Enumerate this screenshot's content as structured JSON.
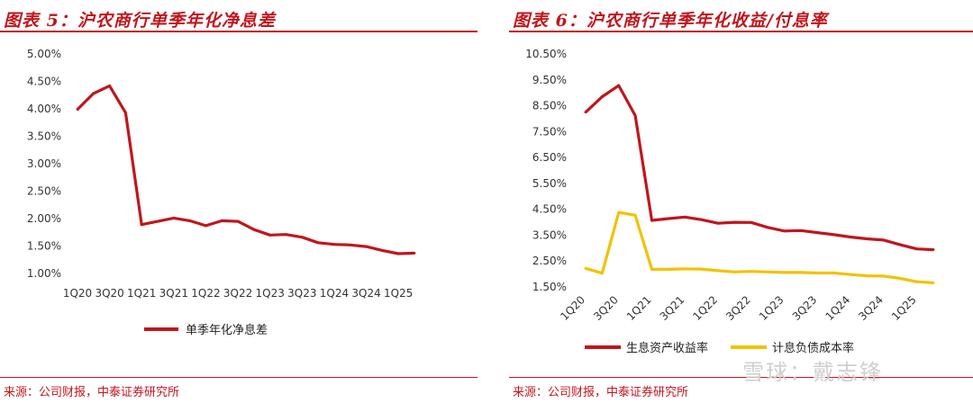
{
  "left": {
    "title": "图表 5：沪农商行单季年化净息差",
    "source": "来源：公司财报，中泰证券研究所"
  },
  "right": {
    "title": "图表 6：沪农商行单季年化收益/付息率",
    "source": "来源：公司财报，中泰证券研究所"
  },
  "watermark": "雪球：戴志锋",
  "chart_data": [
    {
      "type": "line",
      "x": [
        "1Q20",
        "2Q20",
        "3Q20",
        "4Q20",
        "1Q21",
        "2Q21",
        "3Q21",
        "4Q21",
        "1Q22",
        "2Q22",
        "3Q22",
        "4Q22",
        "1Q23",
        "2Q23",
        "3Q23",
        "4Q23",
        "1Q24",
        "2Q24",
        "3Q24",
        "4Q24",
        "1Q25",
        "2Q25"
      ],
      "xticks": [
        "1Q20",
        "3Q20",
        "1Q21",
        "3Q21",
        "1Q22",
        "3Q22",
        "1Q23",
        "3Q23",
        "1Q24",
        "3Q24",
        "1Q25"
      ],
      "yticks": [
        "1.00%",
        "1.50%",
        "2.00%",
        "2.50%",
        "3.00%",
        "3.50%",
        "4.00%",
        "4.50%",
        "5.00%"
      ],
      "ylim": [
        1.0,
        5.0
      ],
      "series": [
        {
          "name": "单季年化净息差",
          "color": "#c0161d",
          "values": [
            3.99,
            4.28,
            4.42,
            3.93,
            1.89,
            1.95,
            2.01,
            1.96,
            1.87,
            1.96,
            1.95,
            1.8,
            1.7,
            1.71,
            1.66,
            1.56,
            1.53,
            1.52,
            1.49,
            1.42,
            1.36,
            1.37
          ]
        }
      ],
      "legend": "bottom"
    },
    {
      "type": "line",
      "x": [
        "1Q20",
        "2Q20",
        "3Q20",
        "4Q20",
        "1Q21",
        "2Q21",
        "3Q21",
        "4Q21",
        "1Q22",
        "2Q22",
        "3Q22",
        "4Q22",
        "1Q23",
        "2Q23",
        "3Q23",
        "4Q23",
        "1Q24",
        "2Q24",
        "3Q24",
        "4Q24",
        "1Q25",
        "2Q25"
      ],
      "xticks": [
        "1Q20",
        "3Q20",
        "1Q21",
        "3Q21",
        "1Q22",
        "3Q22",
        "1Q23",
        "3Q23",
        "1Q24",
        "3Q24",
        "1Q25"
      ],
      "yticks": [
        "1.50%",
        "2.50%",
        "3.50%",
        "4.50%",
        "5.50%",
        "6.50%",
        "7.50%",
        "8.50%",
        "9.50%",
        "10.50%"
      ],
      "ylim": [
        1.5,
        10.5
      ],
      "series": [
        {
          "name": "生息资产收益率",
          "color": "#c0161d",
          "values": [
            8.25,
            8.85,
            9.28,
            8.12,
            4.07,
            4.14,
            4.2,
            4.1,
            3.96,
            4.0,
            3.99,
            3.8,
            3.66,
            3.68,
            3.6,
            3.52,
            3.43,
            3.36,
            3.31,
            3.13,
            2.97,
            2.94
          ]
        },
        {
          "name": "计息负债成本率",
          "color": "#f2c200",
          "values": [
            2.22,
            2.03,
            4.38,
            4.27,
            2.18,
            2.18,
            2.2,
            2.19,
            2.13,
            2.08,
            2.1,
            2.08,
            2.06,
            2.06,
            2.04,
            2.04,
            1.98,
            1.93,
            1.92,
            1.83,
            1.7,
            1.66
          ]
        }
      ],
      "legend": "bottom"
    }
  ]
}
